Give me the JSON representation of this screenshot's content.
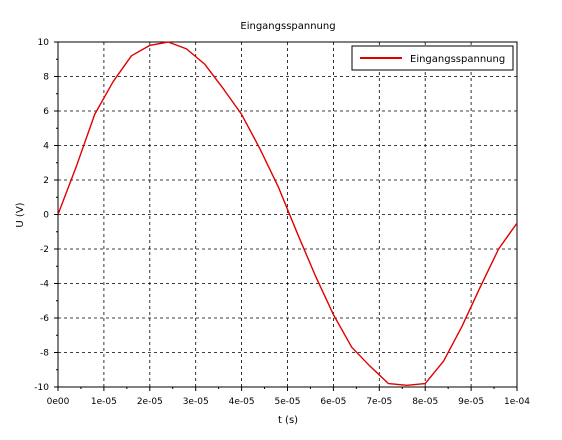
{
  "chart_data": {
    "type": "line",
    "title": "Eingangsspannung",
    "xlabel": "t (s)",
    "ylabel": "U (V)",
    "xlim": [
      0,
      0.0001
    ],
    "ylim": [
      -10,
      10
    ],
    "x_tick_values": [
      0,
      1e-05,
      2e-05,
      3e-05,
      4e-05,
      5e-05,
      6e-05,
      7e-05,
      8e-05,
      9e-05,
      0.0001
    ],
    "x_tick_labels": [
      "0e00",
      "1e-05",
      "2e-05",
      "3e-05",
      "4e-05",
      "5e-05",
      "6e-05",
      "7e-05",
      "8e-05",
      "9e-05",
      "1e-04"
    ],
    "y_tick_values": [
      -10,
      -8,
      -6,
      -4,
      -2,
      0,
      2,
      4,
      6,
      8,
      10
    ],
    "y_tick_labels": [
      "-10",
      "-8",
      "-6",
      "-4",
      "-2",
      "0",
      "2",
      "4",
      "6",
      "8",
      "10"
    ],
    "grid": true,
    "legend_position": "top-right",
    "series": [
      {
        "name": "Eingangsspannung",
        "color": "#e00000",
        "x": [
          0,
          4e-06,
          8e-06,
          1.2e-05,
          1.6e-05,
          2e-05,
          2.4e-05,
          2.8e-05,
          3.2e-05,
          3.6e-05,
          4e-05,
          4.4e-05,
          4.8e-05,
          5.2e-05,
          5.6e-05,
          6e-05,
          6.4e-05,
          6.8e-05,
          7.2e-05,
          7.6e-05,
          8e-05,
          8.4e-05,
          8.8e-05,
          9.2e-05,
          9.6e-05,
          0.0001
        ],
        "values": [
          0,
          2.8,
          5.8,
          7.7,
          9.2,
          9.8,
          10.0,
          9.6,
          8.7,
          7.3,
          5.8,
          3.8,
          1.6,
          -1.0,
          -3.5,
          -5.8,
          -7.7,
          -8.8,
          -9.8,
          -9.9,
          -9.8,
          -8.5,
          -6.5,
          -4.2,
          -2.0,
          -0.5
        ]
      }
    ]
  }
}
